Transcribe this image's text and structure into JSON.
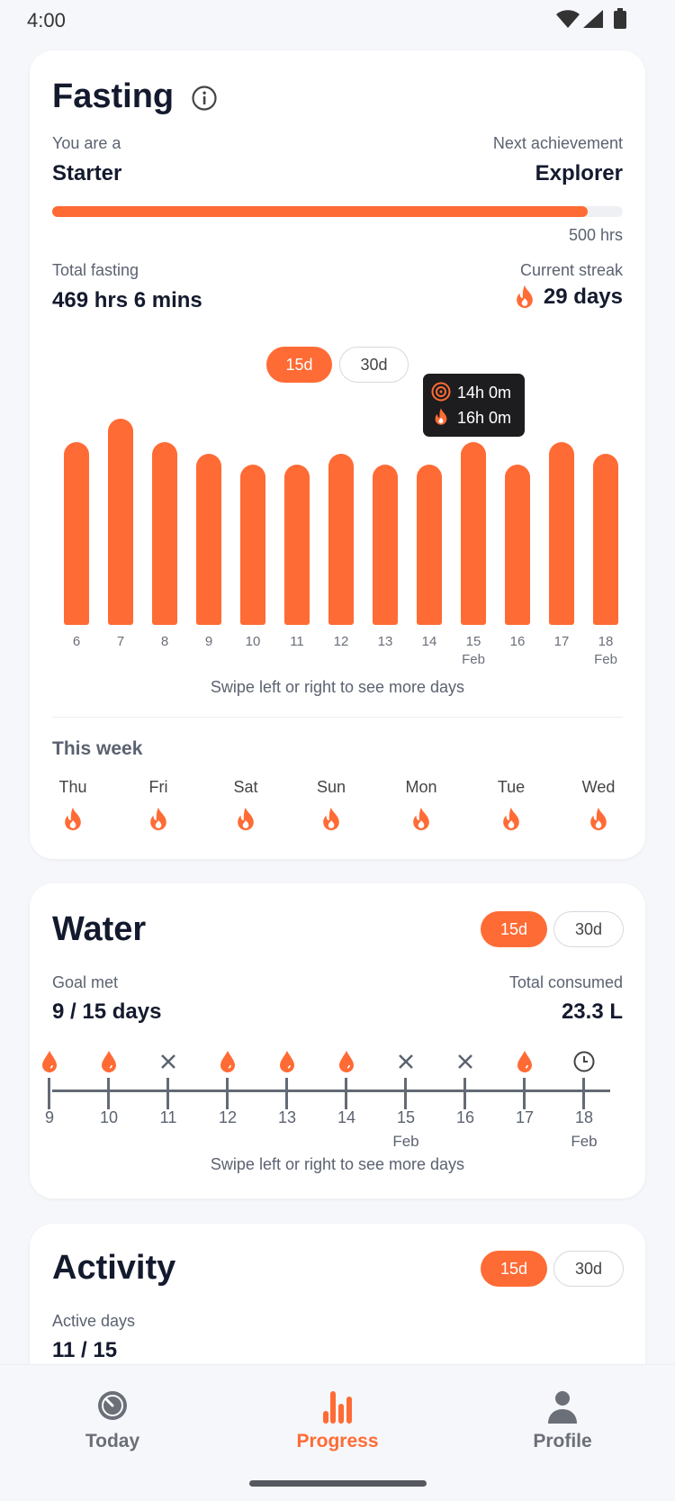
{
  "status_bar": {
    "time": "4:00",
    "icons": [
      "wifi-icon",
      "signal-icon",
      "battery-icon"
    ]
  },
  "fasting": {
    "title": "Fasting",
    "info_icon": "info-icon",
    "level_label": "You are a",
    "level": "Starter",
    "next_label": "Next achievement",
    "next": "Explorer",
    "progress_percent": 93.8,
    "goal_label": "500 hrs",
    "total_label": "Total fasting",
    "total": "469 hrs 6 mins",
    "streak_label": "Current streak",
    "streak": "29 days",
    "range_options": [
      "15d",
      "30d"
    ],
    "range_selected": "15d",
    "tooltip": {
      "goal": "14h 0m",
      "actual": "16h 0m"
    },
    "chart_data": {
      "type": "bar",
      "categories": [
        "6",
        "7",
        "8",
        "9",
        "10",
        "11",
        "12",
        "13",
        "14",
        "15",
        "16",
        "17",
        "18"
      ],
      "sublabels": {
        "15": "Feb",
        "18": "Feb"
      },
      "values": [
        16,
        18,
        16,
        15,
        14,
        14,
        15,
        14,
        14,
        16,
        14,
        16,
        15
      ],
      "unit": "hours",
      "color": "#ff6b35"
    },
    "hint": "Swipe left or right to see more days",
    "week_title": "This week",
    "week": [
      {
        "day": "Thu"
      },
      {
        "day": "Fri"
      },
      {
        "day": "Sat"
      },
      {
        "day": "Sun"
      },
      {
        "day": "Mon"
      },
      {
        "day": "Tue"
      },
      {
        "day": "Wed"
      }
    ]
  },
  "water": {
    "title": "Water",
    "range_options": [
      "15d",
      "30d"
    ],
    "range_selected": "15d",
    "goal_label": "Goal met",
    "goal": "9 / 15 days",
    "total_label": "Total consumed",
    "total": "23.3 L",
    "days": [
      {
        "label": "9",
        "status": "met"
      },
      {
        "label": "10",
        "status": "met"
      },
      {
        "label": "11",
        "status": "missed"
      },
      {
        "label": "12",
        "status": "met"
      },
      {
        "label": "13",
        "status": "met"
      },
      {
        "label": "14",
        "status": "met"
      },
      {
        "label": "15",
        "sub": "Feb",
        "status": "missed"
      },
      {
        "label": "16",
        "status": "missed"
      },
      {
        "label": "17",
        "status": "met"
      },
      {
        "label": "18",
        "sub": "Feb",
        "status": "pending"
      }
    ],
    "hint": "Swipe left or right to see more days"
  },
  "activity": {
    "title": "Activity",
    "range_options": [
      "15d",
      "30d"
    ],
    "range_selected": "15d",
    "active_label": "Active days",
    "active": "11 / 15"
  },
  "nav": [
    {
      "label": "Today",
      "icon": "timer-icon"
    },
    {
      "label": "Progress",
      "icon": "bar-chart-icon",
      "active": true
    },
    {
      "label": "Profile",
      "icon": "person-icon"
    }
  ],
  "colors": {
    "accent": "#ff6b35",
    "text": "#141a2e",
    "muted": "#6b6f78"
  }
}
